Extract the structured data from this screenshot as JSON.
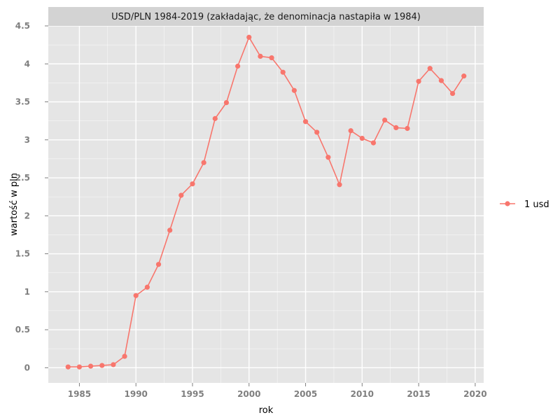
{
  "chart_data": {
    "type": "line",
    "title": "USD/PLN 1984-2019 (zakładając, że denominacja nastapiła w 1984)",
    "xlabel": "rok",
    "ylabel": "wartość w pln",
    "xlim": [
      1982.25,
      2020.75
    ],
    "ylim": [
      -0.2,
      4.5
    ],
    "x_ticks": [
      1985,
      1990,
      1995,
      2000,
      2005,
      2010,
      2015,
      2020
    ],
    "x_tick_labels": [
      "1985",
      "1990",
      "1995",
      "2000",
      "2005",
      "2010",
      "2015",
      "2020"
    ],
    "y_ticks": [
      0,
      0.5,
      1,
      1.5,
      2,
      2.5,
      3,
      3.5,
      4,
      4.5
    ],
    "y_tick_labels": [
      "0",
      "0.5",
      "1",
      "1.5",
      "2",
      "2.5",
      "3",
      "3.5",
      "4",
      "4.5"
    ],
    "grid": true,
    "legend_position": "right",
    "colors": {
      "series": "#f8766d",
      "panel": "#e5e5e5",
      "grid": "#ffffff",
      "strip": "#d3d3d3"
    },
    "series": [
      {
        "name": "1 usd",
        "x": [
          1984,
          1985,
          1986,
          1987,
          1988,
          1989,
          1990,
          1991,
          1992,
          1993,
          1994,
          1995,
          1996,
          1997,
          1998,
          1999,
          2000,
          2001,
          2002,
          2003,
          2004,
          2005,
          2006,
          2007,
          2008,
          2009,
          2010,
          2011,
          2012,
          2013,
          2014,
          2015,
          2016,
          2017,
          2018,
          2019
        ],
        "values": [
          0.01,
          0.01,
          0.02,
          0.03,
          0.04,
          0.15,
          0.95,
          1.06,
          1.36,
          1.81,
          2.27,
          2.42,
          2.7,
          3.28,
          3.49,
          3.97,
          4.35,
          4.1,
          4.08,
          3.89,
          3.65,
          3.24,
          3.1,
          2.77,
          2.41,
          3.12,
          3.02,
          2.96,
          3.26,
          3.16,
          3.15,
          3.77,
          3.94,
          3.78,
          3.61,
          3.84
        ]
      }
    ]
  }
}
